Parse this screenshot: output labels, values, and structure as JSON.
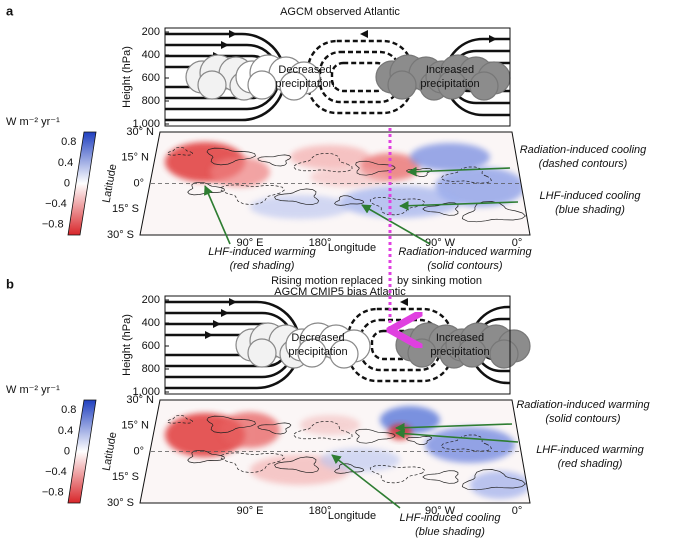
{
  "panels": [
    {
      "label": "a",
      "title": "AGCM observed Atlantic",
      "height_label": "Height (hPa)",
      "height_ticks": [
        "200",
        "400",
        "600",
        "800",
        "1,000"
      ],
      "colorbar_unit": "W m⁻² yr⁻¹",
      "colorbar_ticks": [
        "0.8",
        "0.4",
        "0",
        "−0.4",
        "−0.8"
      ],
      "latitude_label": "Latitude",
      "latitude_ticks": [
        "30° N",
        "15° N",
        "0°",
        "15° S",
        "30° S"
      ],
      "longitude_ticks": [
        "90° E",
        "180°",
        "90° W",
        "0°"
      ],
      "longitude_label": "Longitude",
      "decreased": [
        "Decreased",
        "precipitation"
      ],
      "increased": [
        "Increased",
        "precipitation"
      ],
      "annotations": [
        {
          "text": "Radiation-induced cooling",
          "note": "(dashed contours)"
        },
        {
          "text": "LHF-induced cooling",
          "note": "(blue shading)"
        },
        {
          "text": "LHF-induced warming",
          "note": "(red shading)"
        },
        {
          "text": "Radiation-induced warming",
          "note": "(solid contours)"
        }
      ]
    },
    {
      "label": "b",
      "title": "AGCM CMIP5 bias Atlantic",
      "height_label": "Height (hPa)",
      "height_ticks": [
        "200",
        "400",
        "600",
        "800",
        "1,000"
      ],
      "colorbar_unit": "W m⁻² yr⁻¹",
      "colorbar_ticks": [
        "0.8",
        "0.4",
        "0",
        "−0.4",
        "−0.8"
      ],
      "latitude_label": "Latitude",
      "latitude_ticks": [
        "30° N",
        "15° N",
        "0°",
        "15° S",
        "30° S"
      ],
      "longitude_ticks": [
        "90° E",
        "180°",
        "90° W",
        "0°"
      ],
      "longitude_label": "Longitude",
      "decreased": [
        "Decreased",
        "precipitation"
      ],
      "increased": [
        "Increased",
        "precipitation"
      ],
      "annotations": [
        {
          "text": "Radiation-induced warming",
          "note": "(solid contours)"
        },
        {
          "text": "LHF-induced warming",
          "note": "(red shading)"
        },
        {
          "text": "LHF-induced cooling",
          "note": "(blue shading)"
        }
      ]
    }
  ],
  "transition": [
    "Rising motion replaced",
    "by sinking motion"
  ]
}
